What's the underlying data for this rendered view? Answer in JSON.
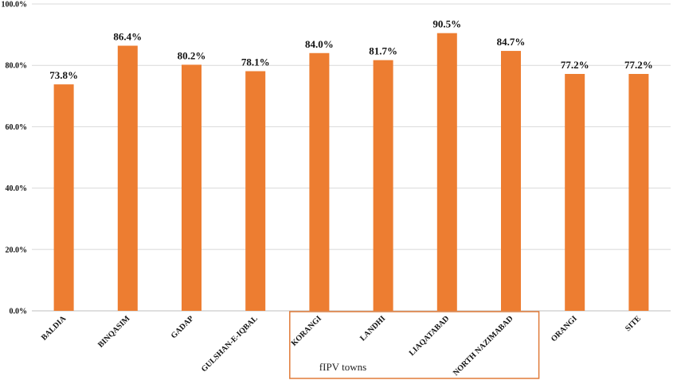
{
  "chart_data": {
    "type": "bar",
    "categories": [
      "BALDIA",
      "BINQASIM",
      "GADAP",
      "GULSHAN-E-IQBAL",
      "KORANGI",
      "LANDHI",
      "LIAQATABAD",
      "NORTH NAZIMABAD",
      "ORANGI",
      "SITE"
    ],
    "values": [
      73.8,
      86.4,
      80.2,
      78.1,
      84.0,
      81.7,
      90.5,
      84.7,
      77.2,
      77.2
    ],
    "data_labels": [
      "73.8%",
      "86.4%",
      "80.2%",
      "78.1%",
      "84.0%",
      "81.7%",
      "90.5%",
      "84.7%",
      "77.2%",
      "77.2%"
    ],
    "ylim": [
      0,
      100
    ],
    "yticks": [
      0,
      20,
      40,
      60,
      80,
      100
    ],
    "ytick_labels": [
      "0.0%",
      "20.0%",
      "40.0%",
      "60.0%",
      "80.0%",
      "100.0%"
    ],
    "title": "",
    "xlabel": "",
    "ylabel": "",
    "grid": true,
    "bar_color": "#ED7D31",
    "grid_color": "#D9D9D9",
    "annotation": {
      "text": "fIPV towns",
      "highlighted_categories": [
        "KORANGI",
        "LANDHI",
        "LIAQATABAD",
        "NORTH NAZIMABAD"
      ],
      "border_color": "#E07B39"
    }
  }
}
